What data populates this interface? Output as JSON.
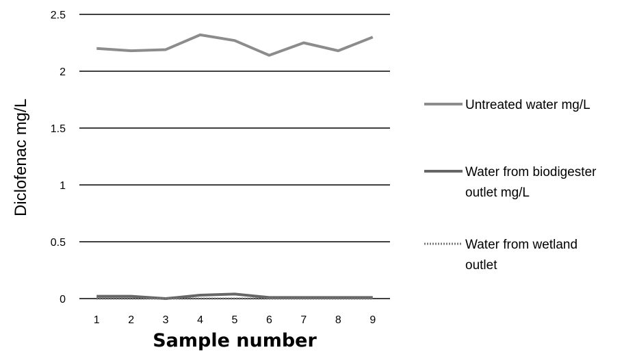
{
  "chart_data": {
    "type": "line",
    "xlabel": "Sample number",
    "ylabel": "Diclofenac mg/L",
    "x": [
      "1",
      "2",
      "3",
      "4",
      "5",
      "6",
      "7",
      "8",
      "9"
    ],
    "yticks": [
      "0",
      "0.5",
      "1",
      "1.5",
      "2",
      "2.5"
    ],
    "ylim": [
      0,
      2.5
    ],
    "grid": true,
    "legend_position": "right",
    "series": [
      {
        "name_lines": [
          "Untreated water mg/L"
        ],
        "values": [
          2.2,
          2.18,
          2.19,
          2.32,
          2.27,
          2.14,
          2.25,
          2.18,
          2.3
        ],
        "color": "#8c8c8c",
        "style": "solid"
      },
      {
        "name_lines": [
          "Water from biodigester",
          "outlet mg/L"
        ],
        "values": [
          0.02,
          0.02,
          0.0,
          0.03,
          0.04,
          0.01,
          0.01,
          0.01,
          0.01
        ],
        "color": "#666666",
        "style": "solid"
      },
      {
        "name_lines": [
          "Water from wetland",
          "outlet"
        ],
        "values": [
          0.0,
          0.0,
          0.0,
          0.0,
          0.0,
          0.0,
          0.0,
          0.0,
          0.0
        ],
        "color": "#777777",
        "style": "dotted"
      }
    ]
  }
}
